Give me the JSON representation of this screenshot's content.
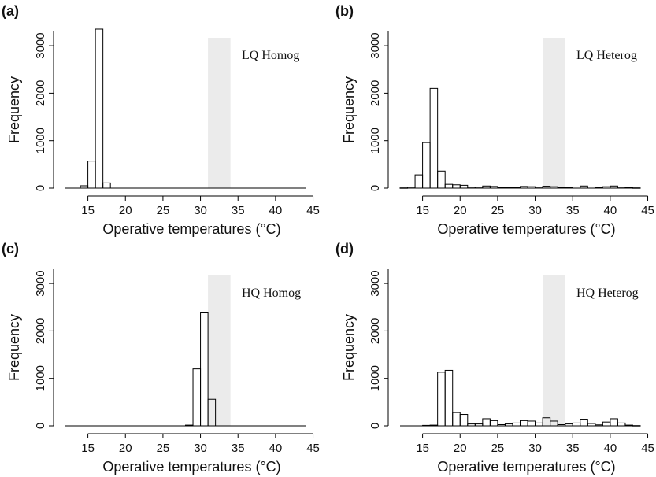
{
  "figure": {
    "panels": [
      "a",
      "b",
      "c",
      "d"
    ]
  },
  "chart_data": [
    {
      "type": "histogram",
      "panel_label": "(a)",
      "annotation": "LQ Homog",
      "xlabel": "Operative temperatures (°C)",
      "ylabel": "Frequency",
      "xlim": [
        12,
        44
      ],
      "ylim": [
        0,
        3300
      ],
      "x_ticks": [
        15,
        20,
        25,
        30,
        35,
        40,
        45
      ],
      "y_ticks": [
        0,
        1000,
        2000,
        3000
      ],
      "bin_width": 1,
      "shaded_band": [
        31,
        34
      ],
      "bins": [
        {
          "start": 14,
          "value": 50
        },
        {
          "start": 15,
          "value": 570
        },
        {
          "start": 16,
          "value": 3350
        },
        {
          "start": 17,
          "value": 110
        }
      ]
    },
    {
      "type": "histogram",
      "panel_label": "(b)",
      "annotation": "LQ Heterog",
      "xlabel": "Operative temperatures (°C)",
      "ylabel": "Frequency",
      "xlim": [
        12,
        44
      ],
      "ylim": [
        0,
        3300
      ],
      "x_ticks": [
        15,
        20,
        25,
        30,
        35,
        40,
        45
      ],
      "y_ticks": [
        0,
        1000,
        2000,
        3000
      ],
      "bin_width": 1,
      "shaded_band": [
        31,
        34
      ],
      "bins": [
        {
          "start": 12,
          "value": 5
        },
        {
          "start": 13,
          "value": 20
        },
        {
          "start": 14,
          "value": 280
        },
        {
          "start": 15,
          "value": 960
        },
        {
          "start": 16,
          "value": 2100
        },
        {
          "start": 17,
          "value": 360
        },
        {
          "start": 18,
          "value": 80
        },
        {
          "start": 19,
          "value": 70
        },
        {
          "start": 20,
          "value": 60
        },
        {
          "start": 21,
          "value": 20
        },
        {
          "start": 22,
          "value": 20
        },
        {
          "start": 23,
          "value": 45
        },
        {
          "start": 24,
          "value": 35
        },
        {
          "start": 25,
          "value": 15
        },
        {
          "start": 26,
          "value": 10
        },
        {
          "start": 27,
          "value": 15
        },
        {
          "start": 28,
          "value": 35
        },
        {
          "start": 29,
          "value": 30
        },
        {
          "start": 30,
          "value": 20
        },
        {
          "start": 31,
          "value": 40
        },
        {
          "start": 32,
          "value": 30
        },
        {
          "start": 33,
          "value": 15
        },
        {
          "start": 34,
          "value": 10
        },
        {
          "start": 35,
          "value": 25
        },
        {
          "start": 36,
          "value": 45
        },
        {
          "start": 37,
          "value": 25
        },
        {
          "start": 38,
          "value": 15
        },
        {
          "start": 39,
          "value": 30
        },
        {
          "start": 40,
          "value": 45
        },
        {
          "start": 41,
          "value": 20
        },
        {
          "start": 42,
          "value": 10
        },
        {
          "start": 43,
          "value": 5
        }
      ]
    },
    {
      "type": "histogram",
      "panel_label": "(c)",
      "annotation": "HQ Homog",
      "xlabel": "Operative temperatures (°C)",
      "ylabel": "Frequency",
      "xlim": [
        12,
        44
      ],
      "ylim": [
        0,
        3300
      ],
      "x_ticks": [
        15,
        20,
        25,
        30,
        35,
        40,
        45
      ],
      "y_ticks": [
        0,
        1000,
        2000,
        3000
      ],
      "bin_width": 1,
      "shaded_band": [
        31,
        34
      ],
      "bins": [
        {
          "start": 28,
          "value": 15
        },
        {
          "start": 29,
          "value": 1200
        },
        {
          "start": 30,
          "value": 2380
        },
        {
          "start": 31,
          "value": 560
        }
      ]
    },
    {
      "type": "histogram",
      "panel_label": "(d)",
      "annotation": "HQ Heterog",
      "xlabel": "Operative temperatures (°C)",
      "ylabel": "Frequency",
      "xlim": [
        12,
        44
      ],
      "ylim": [
        0,
        3300
      ],
      "x_ticks": [
        15,
        20,
        25,
        30,
        35,
        40,
        45
      ],
      "y_ticks": [
        0,
        1000,
        2000,
        3000
      ],
      "bin_width": 1,
      "shaded_band": [
        31,
        34
      ],
      "bins": [
        {
          "start": 15,
          "value": 10
        },
        {
          "start": 16,
          "value": 15
        },
        {
          "start": 17,
          "value": 1130
        },
        {
          "start": 18,
          "value": 1170
        },
        {
          "start": 19,
          "value": 280
        },
        {
          "start": 20,
          "value": 240
        },
        {
          "start": 21,
          "value": 40
        },
        {
          "start": 22,
          "value": 40
        },
        {
          "start": 23,
          "value": 150
        },
        {
          "start": 24,
          "value": 110
        },
        {
          "start": 25,
          "value": 25
        },
        {
          "start": 26,
          "value": 40
        },
        {
          "start": 27,
          "value": 60
        },
        {
          "start": 28,
          "value": 110
        },
        {
          "start": 29,
          "value": 100
        },
        {
          "start": 30,
          "value": 60
        },
        {
          "start": 31,
          "value": 170
        },
        {
          "start": 32,
          "value": 100
        },
        {
          "start": 33,
          "value": 25
        },
        {
          "start": 34,
          "value": 40
        },
        {
          "start": 35,
          "value": 60
        },
        {
          "start": 36,
          "value": 140
        },
        {
          "start": 37,
          "value": 50
        },
        {
          "start": 38,
          "value": 20
        },
        {
          "start": 39,
          "value": 80
        },
        {
          "start": 40,
          "value": 150
        },
        {
          "start": 41,
          "value": 60
        },
        {
          "start": 42,
          "value": 15
        },
        {
          "start": 43,
          "value": 5
        }
      ]
    }
  ]
}
